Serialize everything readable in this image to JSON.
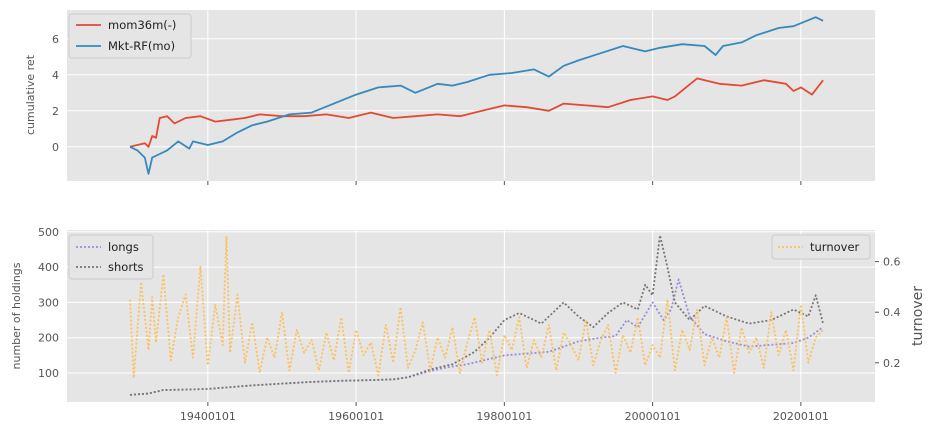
{
  "chart_data": [
    {
      "type": "line",
      "ylabel": "cumulative ret",
      "xlim": [
        1921,
        2030
      ],
      "ylim": [
        -1.9,
        7.6
      ],
      "yticks": [
        0,
        2,
        4,
        6
      ],
      "grid": true,
      "legend_placement": "top-left",
      "colors": {
        "mom36m(-)": "#E24A33",
        "Mkt-RF(mo)": "#348ABD"
      },
      "series": [
        {
          "name": "mom36m(-)",
          "x": [
            1929.5,
            1930.5,
            1931.5,
            1932.0,
            1932.5,
            1933.0,
            1933.5,
            1934.5,
            1935.5,
            1937,
            1939,
            1941,
            1943,
            1945,
            1947,
            1950,
            1953,
            1956,
            1959,
            1962,
            1965,
            1968,
            1971,
            1974,
            1977,
            1980,
            1983,
            1986,
            1988,
            1991,
            1994,
            1997,
            2000,
            2002,
            2003,
            2006,
            2009,
            2012,
            2015,
            2018,
            2019,
            2020,
            2021.5,
            2023
          ],
          "y": [
            0.0,
            0.1,
            0.2,
            0.0,
            0.6,
            0.5,
            1.6,
            1.7,
            1.3,
            1.6,
            1.7,
            1.4,
            1.5,
            1.6,
            1.8,
            1.7,
            1.7,
            1.8,
            1.6,
            1.9,
            1.6,
            1.7,
            1.8,
            1.7,
            2.0,
            2.3,
            2.2,
            2.0,
            2.4,
            2.3,
            2.2,
            2.6,
            2.8,
            2.6,
            2.8,
            3.8,
            3.5,
            3.4,
            3.7,
            3.5,
            3.1,
            3.3,
            2.9,
            3.7
          ]
        },
        {
          "name": "Mkt-RF(mo)",
          "x": [
            1929.5,
            1930.5,
            1931.5,
            1932.0,
            1932.5,
            1933.5,
            1934.5,
            1936,
            1937.5,
            1938,
            1940,
            1942,
            1944,
            1946,
            1948,
            1951,
            1954,
            1957,
            1960,
            1963,
            1966,
            1968,
            1971,
            1973,
            1975,
            1978,
            1981,
            1984,
            1986,
            1988,
            1990,
            1993,
            1996,
            1999,
            2001,
            2004,
            2007,
            2008.5,
            2009.5,
            2012,
            2014,
            2017,
            2019,
            2022,
            2023
          ],
          "y": [
            0.0,
            -0.2,
            -0.6,
            -1.5,
            -0.6,
            -0.4,
            -0.2,
            0.3,
            -0.1,
            0.3,
            0.1,
            0.3,
            0.8,
            1.2,
            1.4,
            1.8,
            1.9,
            2.4,
            2.9,
            3.3,
            3.4,
            3.0,
            3.5,
            3.4,
            3.6,
            4.0,
            4.1,
            4.3,
            3.9,
            4.5,
            4.8,
            5.2,
            5.6,
            5.3,
            5.5,
            5.7,
            5.6,
            5.1,
            5.6,
            5.8,
            6.2,
            6.6,
            6.7,
            7.2,
            7.0
          ]
        }
      ]
    },
    {
      "type": "line",
      "ylabel": "number of holdings",
      "y2label": "turnover",
      "xlim": [
        1921,
        2030
      ],
      "ylim": [
        18,
        505
      ],
      "y2lim": [
        0.045,
        0.725
      ],
      "yticks": [
        100,
        200,
        300,
        400,
        500
      ],
      "y2ticks": [
        0.2,
        0.4,
        0.6
      ],
      "xticks": [
        "19400101",
        "19600101",
        "19800101",
        "20000101",
        "20200101"
      ],
      "xtick_positions": [
        1940,
        1960,
        1980,
        2000,
        2020
      ],
      "grid": true,
      "legend_placement": "top-left / top-right",
      "colors": {
        "longs": "#988ED5",
        "shorts": "#777777",
        "turnover": "#FBC15E"
      },
      "series": [
        {
          "name": "longs",
          "axis": "left",
          "x": [
            1929.5,
            1932,
            1934,
            1937,
            1940,
            1943,
            1946,
            1950,
            1954,
            1958,
            1962,
            1965,
            1967,
            1969,
            1972,
            1975,
            1978,
            1980,
            1983,
            1986,
            1988,
            1990,
            1993,
            1995,
            1996.5,
            1998,
            2000,
            2001.5,
            2002.5,
            2003.5,
            2005,
            2007,
            2010,
            2013,
            2016,
            2019,
            2021,
            2023
          ],
          "y": [
            38,
            42,
            52,
            53,
            55,
            60,
            65,
            70,
            75,
            78,
            80,
            82,
            88,
            100,
            115,
            125,
            140,
            150,
            155,
            160,
            175,
            190,
            200,
            205,
            250,
            230,
            300,
            250,
            280,
            365,
            260,
            210,
            190,
            175,
            180,
            185,
            200,
            230
          ]
        },
        {
          "name": "shorts",
          "axis": "left",
          "x": [
            1929.5,
            1932,
            1934,
            1937,
            1940,
            1943,
            1946,
            1950,
            1954,
            1958,
            1962,
            1965,
            1967,
            1970,
            1973,
            1976,
            1978,
            1980,
            1982,
            1985,
            1988,
            1990,
            1992,
            1994,
            1996,
            1998,
            1999,
            2000,
            2001,
            2002,
            2003,
            2005,
            2007,
            2010,
            2013,
            2016,
            2019,
            2021,
            2022,
            2023
          ],
          "y": [
            38,
            42,
            52,
            53,
            55,
            60,
            65,
            70,
            75,
            78,
            80,
            82,
            88,
            110,
            125,
            160,
            200,
            250,
            270,
            240,
            300,
            260,
            230,
            270,
            300,
            280,
            350,
            320,
            490,
            400,
            300,
            250,
            290,
            260,
            240,
            250,
            280,
            260,
            320,
            240
          ]
        },
        {
          "name": "turnover",
          "axis": "right",
          "x": [
            1929.5,
            1930,
            1931,
            1932,
            1932.5,
            1933,
            1934,
            1935,
            1936,
            1937,
            1938,
            1939,
            1940,
            1941,
            1942,
            1942.5,
            1943,
            1944,
            1945,
            1946,
            1947,
            1948,
            1949,
            1950,
            1951,
            1952,
            1953,
            1954,
            1955,
            1956,
            1957,
            1958,
            1959,
            1960,
            1961,
            1962,
            1963,
            1964,
            1965,
            1966,
            1967,
            1968,
            1969,
            1970,
            1971,
            1972,
            1973,
            1974,
            1975,
            1976,
            1977,
            1978,
            1979,
            1980,
            1981,
            1982,
            1983,
            1984,
            1985,
            1986,
            1987,
            1988,
            1989,
            1990,
            1991,
            1992,
            1993,
            1994,
            1995,
            1996,
            1997,
            1998,
            1999,
            2000,
            2001,
            2002,
            2003,
            2004,
            2005,
            2006,
            2007,
            2008,
            2009,
            2010,
            2011,
            2012,
            2013,
            2014,
            2015,
            2016,
            2017,
            2018,
            2019,
            2020,
            2021,
            2022,
            2023
          ],
          "y": [
            0.45,
            0.14,
            0.52,
            0.25,
            0.46,
            0.28,
            0.55,
            0.21,
            0.38,
            0.47,
            0.22,
            0.58,
            0.19,
            0.43,
            0.27,
            0.7,
            0.24,
            0.47,
            0.2,
            0.36,
            0.16,
            0.3,
            0.22,
            0.4,
            0.17,
            0.33,
            0.24,
            0.29,
            0.17,
            0.32,
            0.21,
            0.38,
            0.16,
            0.33,
            0.23,
            0.28,
            0.15,
            0.35,
            0.2,
            0.42,
            0.18,
            0.25,
            0.36,
            0.17,
            0.3,
            0.22,
            0.34,
            0.16,
            0.28,
            0.38,
            0.2,
            0.33,
            0.15,
            0.31,
            0.25,
            0.38,
            0.18,
            0.29,
            0.22,
            0.35,
            0.17,
            0.32,
            0.27,
            0.21,
            0.37,
            0.19,
            0.29,
            0.35,
            0.16,
            0.31,
            0.24,
            0.38,
            0.19,
            0.27,
            0.22,
            0.45,
            0.17,
            0.33,
            0.25,
            0.41,
            0.19,
            0.3,
            0.22,
            0.38,
            0.16,
            0.34,
            0.24,
            0.3,
            0.18,
            0.4,
            0.23,
            0.33,
            0.17,
            0.43,
            0.2,
            0.3,
            0.33
          ]
        }
      ]
    }
  ]
}
